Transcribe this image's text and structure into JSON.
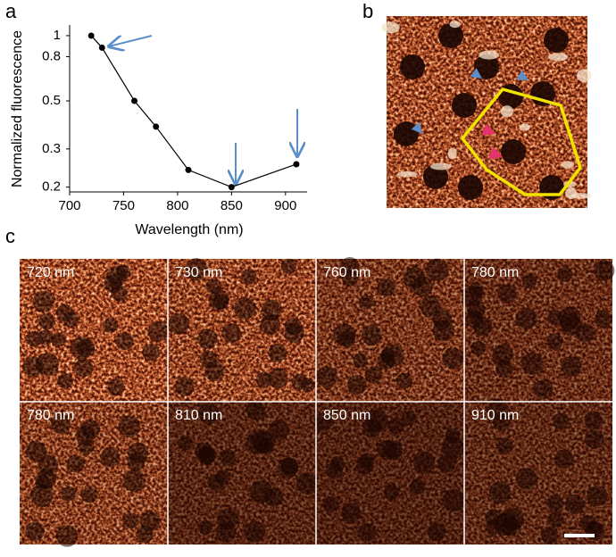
{
  "chart_data": {
    "type": "line",
    "xlabel": "Wavelength (nm)",
    "ylabel": "Normalized fluorescence",
    "x": [
      720,
      730,
      760,
      780,
      810,
      850,
      910
    ],
    "series": [
      {
        "color": "#000000",
        "values": [
          1,
          0.88,
          0.5,
          0.38,
          0.24,
          0.2,
          0.255
        ]
      }
    ],
    "xlim": [
      700,
      920
    ],
    "xticks": [
      700,
      750,
      800,
      850,
      900
    ],
    "ylim": [
      0.19,
      1.12
    ],
    "yticks": [
      0.2,
      0.3,
      0.5,
      0.8,
      1
    ],
    "yscale": "log",
    "grid": false
  },
  "panel_labels": [
    "a",
    "b",
    "c"
  ],
  "panel_c": {
    "images": [
      "720 nm",
      "730 nm",
      "760 nm",
      "780 nm",
      "780 nm",
      "810 nm",
      "850 nm",
      "910 nm"
    ]
  }
}
